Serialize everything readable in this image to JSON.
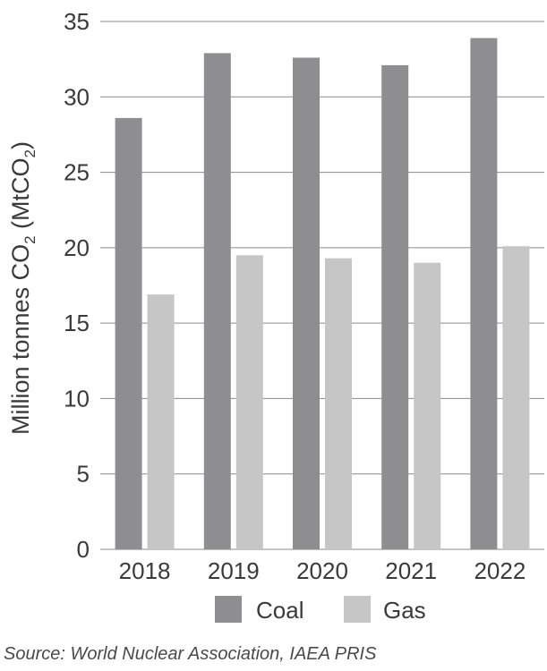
{
  "chart_data": {
    "type": "bar",
    "categories": [
      "2018",
      "2019",
      "2020",
      "2021",
      "2022"
    ],
    "series": [
      {
        "name": "Coal",
        "color": "#8e8e90",
        "values": [
          28.6,
          32.9,
          32.6,
          32.1,
          33.9
        ]
      },
      {
        "name": "Gas",
        "color": "#c6c6c7",
        "values": [
          16.9,
          19.5,
          19.3,
          19.0,
          20.1
        ]
      }
    ],
    "ylim": [
      0,
      35
    ],
    "yticks": [
      0,
      5,
      10,
      15,
      20,
      25,
      30,
      35
    ],
    "ylabel": {
      "main": "Million tonnes CO",
      "sub1": "2",
      "mid": " (MtCO",
      "sub2": "2",
      "end": ")"
    },
    "xlabel": "",
    "grid": "horizontal",
    "legend_position": "bottom"
  },
  "source": "Source: World Nuclear Association, IAEA PRIS"
}
